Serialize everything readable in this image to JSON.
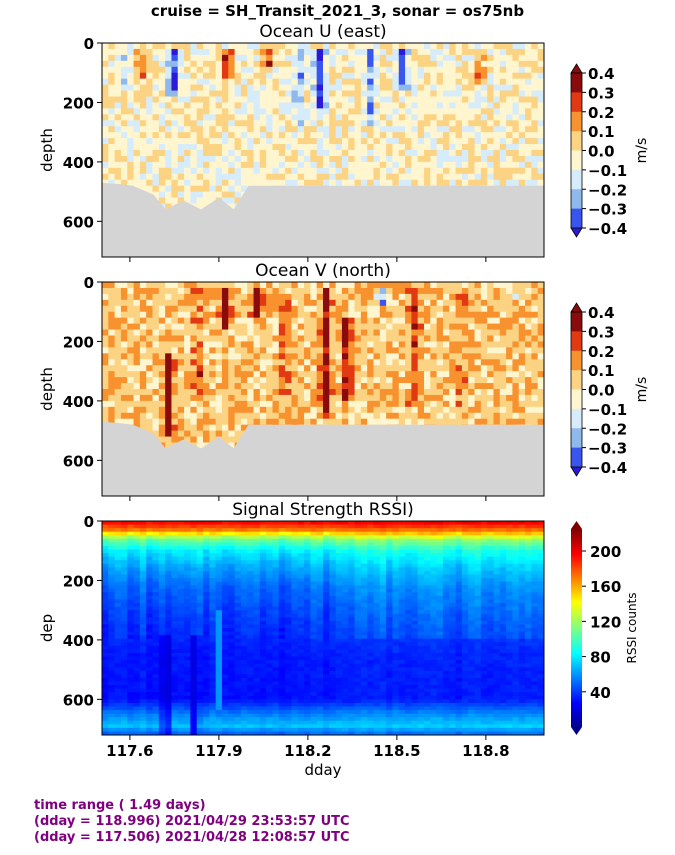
{
  "figure": {
    "suptitle": "cruise = SH_Transit_2021_3,  sonar = os75nb",
    "footer": [
      "time range ( 1.49 days)",
      "(dday = 118.996) 2021/04/29 23:53:57 UTC",
      "(dday = 117.506) 2021/04/28 12:08:57 UTC"
    ]
  },
  "chart_data": [
    {
      "type": "heatmap",
      "title": "Ocean U (east)",
      "xlabel": "",
      "ylabel": "depth",
      "xlim": [
        117.506,
        118.996
      ],
      "ylim": [
        720,
        0
      ],
      "yticks": [
        0,
        200,
        400,
        600
      ],
      "xticks": [
        117.6,
        117.9,
        118.2,
        118.5,
        118.8
      ],
      "show_xticklabels": false,
      "colorbar": {
        "label": "m/s",
        "ticks": [
          "0.4",
          "0.3",
          "0.2",
          "0.1",
          "0.0",
          "−0.1",
          "−0.2",
          "−0.3",
          "−0.4"
        ],
        "levels": [
          -0.4,
          -0.3,
          -0.2,
          -0.1,
          0.0,
          0.1,
          0.2,
          0.3,
          0.4
        ],
        "colors": [
          "#2a1ad8",
          "#3a55ee",
          "#8fb8ec",
          "#d6ecfb",
          "#fff6cf",
          "#fbd382",
          "#f7922e",
          "#e13a13",
          "#8a0b0b"
        ]
      },
      "valid_bottom_depth": [
        {
          "dday": 117.506,
          "depth": 470
        },
        {
          "dday": 117.57,
          "depth": 475
        },
        {
          "dday": 117.61,
          "depth": 480
        },
        {
          "dday": 117.68,
          "depth": 510
        },
        {
          "dday": 117.72,
          "depth": 560
        },
        {
          "dday": 117.78,
          "depth": 530
        },
        {
          "dday": 117.84,
          "depth": 560
        },
        {
          "dday": 117.9,
          "depth": 520
        },
        {
          "dday": 117.95,
          "depth": 560
        },
        {
          "dday": 118.0,
          "depth": 480
        },
        {
          "dday": 118.5,
          "depth": 480
        },
        {
          "dday": 118.996,
          "depth": 480
        }
      ],
      "features": [
        {
          "dday": 117.59,
          "depth_top": 20,
          "depth_bottom": 160,
          "value": -0.15
        },
        {
          "dday": 117.64,
          "depth_top": 20,
          "depth_bottom": 120,
          "value": 0.25
        },
        {
          "dday": 117.75,
          "depth_top": 20,
          "depth_bottom": 170,
          "value": -0.35
        },
        {
          "dday": 117.93,
          "depth_top": 20,
          "depth_bottom": 110,
          "value": 0.35
        },
        {
          "dday": 118.07,
          "depth_top": 20,
          "depth_bottom": 70,
          "value": 0.3
        },
        {
          "dday": 118.17,
          "depth_top": 20,
          "depth_bottom": 270,
          "value": -0.2
        },
        {
          "dday": 118.24,
          "depth_top": 20,
          "depth_bottom": 220,
          "value": -0.35
        },
        {
          "dday": 118.41,
          "depth_top": 20,
          "depth_bottom": 270,
          "value": -0.2
        },
        {
          "dday": 118.52,
          "depth_top": 20,
          "depth_bottom": 160,
          "value": -0.3
        },
        {
          "dday": 118.78,
          "depth_top": 20,
          "depth_bottom": 140,
          "value": 0.2
        }
      ]
    },
    {
      "type": "heatmap",
      "title": "Ocean V (north)",
      "xlabel": "",
      "ylabel": "depth",
      "xlim": [
        117.506,
        118.996
      ],
      "ylim": [
        720,
        0
      ],
      "yticks": [
        0,
        200,
        400,
        600
      ],
      "xticks": [
        117.6,
        117.9,
        118.2,
        118.5,
        118.8
      ],
      "show_xticklabels": false,
      "colorbar": {
        "label": "m/s",
        "ticks": [
          "0.4",
          "0.3",
          "0.2",
          "0.1",
          "0.0",
          "−0.1",
          "−0.2",
          "−0.3",
          "−0.4"
        ],
        "levels": [
          -0.4,
          -0.3,
          -0.2,
          -0.1,
          0.0,
          0.1,
          0.2,
          0.3,
          0.4
        ],
        "colors": [
          "#2a1ad8",
          "#3a55ee",
          "#8fb8ec",
          "#d6ecfb",
          "#fff6cf",
          "#fbd382",
          "#f7922e",
          "#e13a13",
          "#8a0b0b"
        ]
      },
      "valid_bottom_depth": [
        {
          "dday": 117.506,
          "depth": 470
        },
        {
          "dday": 117.57,
          "depth": 475
        },
        {
          "dday": 117.61,
          "depth": 480
        },
        {
          "dday": 117.68,
          "depth": 510
        },
        {
          "dday": 117.72,
          "depth": 560
        },
        {
          "dday": 117.78,
          "depth": 530
        },
        {
          "dday": 117.84,
          "depth": 560
        },
        {
          "dday": 117.9,
          "depth": 520
        },
        {
          "dday": 117.95,
          "depth": 560
        },
        {
          "dday": 118.0,
          "depth": 480
        },
        {
          "dday": 118.5,
          "depth": 480
        },
        {
          "dday": 118.996,
          "depth": 480
        }
      ],
      "features": [
        {
          "dday": 117.73,
          "depth_top": 240,
          "depth_bottom": 520,
          "value": 0.3
        },
        {
          "dday": 117.83,
          "depth_top": 20,
          "depth_bottom": 400,
          "value": 0.15
        },
        {
          "dday": 117.92,
          "depth_top": 20,
          "depth_bottom": 160,
          "value": 0.35
        },
        {
          "dday": 118.03,
          "depth_top": 20,
          "depth_bottom": 120,
          "value": 0.3
        },
        {
          "dday": 118.12,
          "depth_top": 60,
          "depth_bottom": 460,
          "value": 0.15
        },
        {
          "dday": 118.26,
          "depth_top": 20,
          "depth_bottom": 460,
          "value": 0.3
        },
        {
          "dday": 118.33,
          "depth_top": 120,
          "depth_bottom": 400,
          "value": 0.25
        },
        {
          "dday": 118.45,
          "depth_top": 20,
          "depth_bottom": 80,
          "value": -0.35
        },
        {
          "dday": 118.56,
          "depth_top": 20,
          "depth_bottom": 420,
          "value": 0.2
        },
        {
          "dday": 118.72,
          "depth_top": 20,
          "depth_bottom": 420,
          "value": 0.1
        },
        {
          "dday": 118.9,
          "depth_top": 20,
          "depth_bottom": 60,
          "value": -0.15
        }
      ]
    },
    {
      "type": "heatmap",
      "title": "Signal Strength RSSI)",
      "xlabel": "dday",
      "ylabel": "dep",
      "xlim": [
        117.506,
        118.996
      ],
      "ylim": [
        720,
        0
      ],
      "yticks": [
        0,
        200,
        400,
        600
      ],
      "xticks": [
        117.6,
        117.9,
        118.2,
        118.5,
        118.8
      ],
      "xticklabels": [
        "117.6",
        "117.9",
        "118.2",
        "118.5",
        "118.8"
      ],
      "show_xticklabels": true,
      "colorbar": {
        "label": "RSSI counts",
        "ticks": [
          "200",
          "160",
          "120",
          "80",
          "40"
        ],
        "range": [
          0,
          225
        ]
      },
      "profile": [
        {
          "depth": 0,
          "rssi": 200
        },
        {
          "depth": 30,
          "rssi": 170
        },
        {
          "depth": 60,
          "rssi": 110
        },
        {
          "depth": 100,
          "rssi": 80
        },
        {
          "depth": 150,
          "rssi": 65
        },
        {
          "depth": 220,
          "rssi": 50
        },
        {
          "depth": 320,
          "rssi": 40
        },
        {
          "depth": 450,
          "rssi": 32
        },
        {
          "depth": 600,
          "rssi": 30
        },
        {
          "depth": 650,
          "rssi": 55
        },
        {
          "depth": 690,
          "rssi": 70
        },
        {
          "depth": 720,
          "rssi": 45
        }
      ],
      "features": [
        {
          "dday": 117.72,
          "depth_top": 380,
          "depth_bottom": 720,
          "value": 10
        },
        {
          "dday": 117.82,
          "depth_top": 380,
          "depth_bottom": 720,
          "value": 18
        },
        {
          "dday": 117.9,
          "depth_top": 300,
          "depth_bottom": 640,
          "value": 60
        }
      ]
    }
  ]
}
